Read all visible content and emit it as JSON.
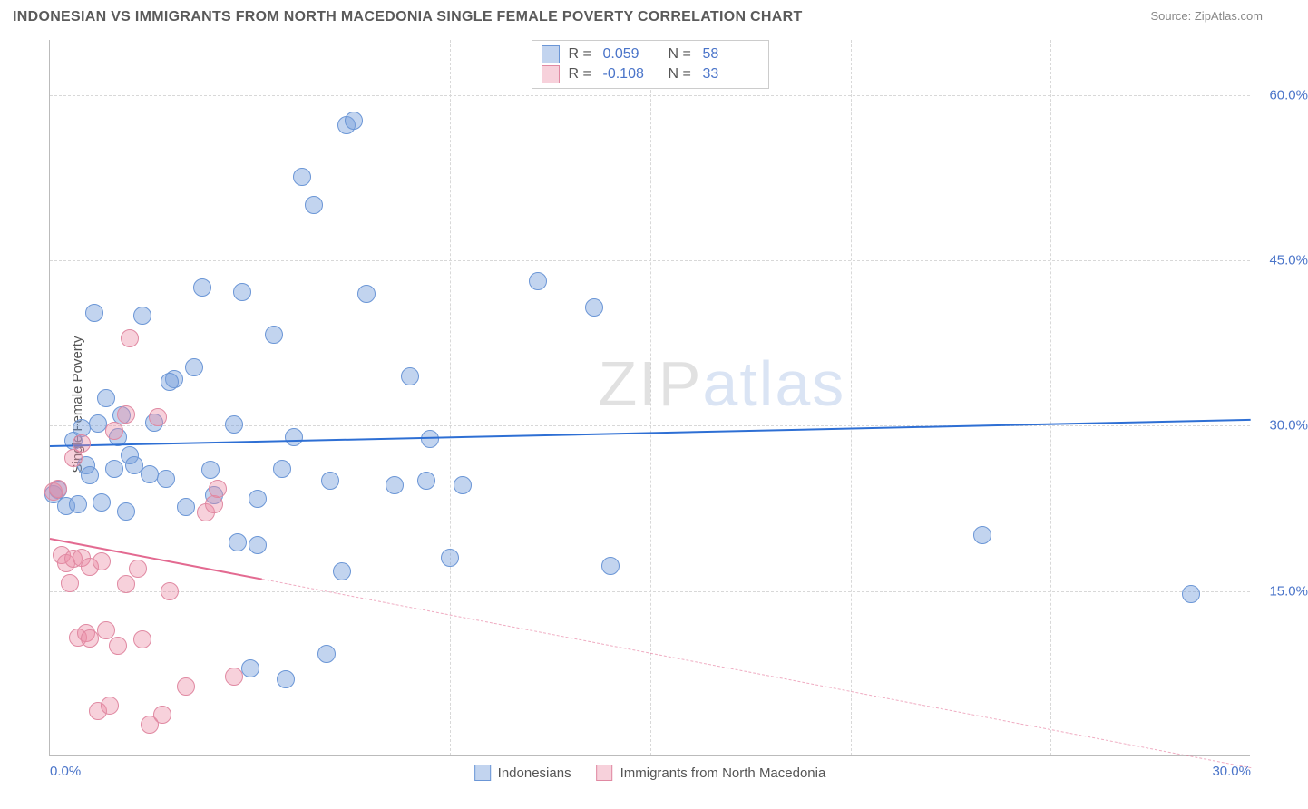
{
  "header": {
    "title": "INDONESIAN VS IMMIGRANTS FROM NORTH MACEDONIA SINGLE FEMALE POVERTY CORRELATION CHART",
    "source": "Source: ZipAtlas.com"
  },
  "watermark": {
    "part1": "ZIP",
    "part2": "atlas"
  },
  "chart": {
    "type": "scatter",
    "ylabel": "Single Female Poverty",
    "background_color": "#ffffff",
    "grid_color": "#d8d8d8",
    "axis_color": "#bbbbbb",
    "tick_font_color": "#4a74c9",
    "tick_fontsize": 15,
    "xlim": [
      0,
      30
    ],
    "ylim": [
      0,
      65
    ],
    "yticks": [
      {
        "v": 15,
        "label": "15.0%"
      },
      {
        "v": 30,
        "label": "30.0%"
      },
      {
        "v": 45,
        "label": "45.0%"
      },
      {
        "v": 60,
        "label": "60.0%"
      }
    ],
    "xticks": [
      {
        "v": 0,
        "label": "0.0%",
        "pos": "first"
      },
      {
        "v": 10,
        "label": "",
        "pos": "mid"
      },
      {
        "v": 15,
        "label": "",
        "pos": "mid"
      },
      {
        "v": 20,
        "label": "",
        "pos": "mid"
      },
      {
        "v": 25,
        "label": "",
        "pos": "mid"
      },
      {
        "v": 30,
        "label": "30.0%",
        "pos": "last"
      }
    ],
    "marker_radius": 10,
    "marker_opacity": 0.55,
    "series": [
      {
        "name": "Indonesians",
        "color_fill": "rgba(120,160,220,0.45)",
        "color_stroke": "#6b96d6",
        "trend_color": "#2e6fd4",
        "trend_width": 2.4,
        "trend_dash": "solid",
        "R": "0.059",
        "N": "58",
        "trend": {
          "x1": 0,
          "y1": 28.2,
          "x2": 30,
          "y2": 30.6
        },
        "points": [
          [
            0.1,
            23.8
          ],
          [
            0.2,
            24.2
          ],
          [
            0.4,
            22.7
          ],
          [
            0.6,
            28.6
          ],
          [
            0.7,
            22.9
          ],
          [
            0.8,
            29.8
          ],
          [
            0.9,
            26.4
          ],
          [
            1.0,
            25.5
          ],
          [
            1.1,
            40.2
          ],
          [
            1.2,
            30.2
          ],
          [
            1.3,
            23.0
          ],
          [
            1.4,
            32.5
          ],
          [
            1.6,
            26.1
          ],
          [
            1.7,
            29.0
          ],
          [
            1.8,
            30.9
          ],
          [
            1.9,
            22.2
          ],
          [
            2.0,
            27.3
          ],
          [
            2.1,
            26.4
          ],
          [
            2.3,
            40.0
          ],
          [
            2.5,
            25.6
          ],
          [
            2.6,
            30.3
          ],
          [
            2.9,
            25.2
          ],
          [
            3.1,
            34.2
          ],
          [
            3.4,
            22.6
          ],
          [
            3.6,
            35.3
          ],
          [
            3.8,
            42.5
          ],
          [
            4.0,
            26.0
          ],
          [
            4.1,
            23.7
          ],
          [
            4.6,
            30.1
          ],
          [
            4.7,
            19.4
          ],
          [
            4.8,
            42.1
          ],
          [
            5.0,
            8.0
          ],
          [
            5.2,
            23.4
          ],
          [
            5.2,
            19.2
          ],
          [
            5.6,
            38.3
          ],
          [
            5.8,
            26.1
          ],
          [
            5.9,
            7.0
          ],
          [
            6.1,
            29.0
          ],
          [
            6.3,
            52.6
          ],
          [
            6.9,
            9.3
          ],
          [
            7.0,
            25.0
          ],
          [
            7.3,
            16.8
          ],
          [
            7.4,
            57.3
          ],
          [
            7.6,
            57.7
          ],
          [
            7.9,
            42.0
          ],
          [
            8.6,
            24.6
          ],
          [
            9.0,
            34.5
          ],
          [
            9.4,
            25.0
          ],
          [
            9.5,
            28.8
          ],
          [
            10.0,
            18.0
          ],
          [
            10.3,
            24.6
          ],
          [
            12.2,
            43.1
          ],
          [
            13.6,
            40.7
          ],
          [
            14.0,
            17.3
          ],
          [
            23.3,
            20.1
          ],
          [
            28.5,
            14.7
          ],
          [
            6.6,
            50.0
          ],
          [
            3.0,
            34.0
          ]
        ]
      },
      {
        "name": "Immigrants from North Macedonia",
        "color_fill": "rgba(235,140,165,0.40)",
        "color_stroke": "#e089a2",
        "trend_color": "#e36a91",
        "trend_width": 2.2,
        "trend_dash": "solid_then_dash",
        "R": "-0.108",
        "N": "33",
        "trend": {
          "x1": 0,
          "y1": 19.8,
          "x2": 30,
          "y2": -1.0
        },
        "points": [
          [
            0.1,
            24.0
          ],
          [
            0.2,
            24.3
          ],
          [
            0.3,
            18.3
          ],
          [
            0.4,
            17.5
          ],
          [
            0.5,
            15.7
          ],
          [
            0.6,
            27.1
          ],
          [
            0.6,
            17.9
          ],
          [
            0.7,
            10.8
          ],
          [
            0.8,
            28.4
          ],
          [
            0.8,
            18.0
          ],
          [
            0.9,
            11.2
          ],
          [
            1.0,
            10.7
          ],
          [
            1.0,
            17.2
          ],
          [
            1.2,
            4.1
          ],
          [
            1.3,
            17.7
          ],
          [
            1.4,
            11.4
          ],
          [
            1.5,
            4.6
          ],
          [
            1.6,
            29.5
          ],
          [
            1.7,
            10.0
          ],
          [
            1.9,
            15.6
          ],
          [
            1.9,
            31.0
          ],
          [
            2.0,
            37.9
          ],
          [
            2.2,
            17.0
          ],
          [
            2.3,
            10.6
          ],
          [
            2.5,
            2.9
          ],
          [
            2.7,
            30.8
          ],
          [
            2.8,
            3.8
          ],
          [
            3.0,
            15.0
          ],
          [
            3.4,
            6.3
          ],
          [
            3.9,
            22.1
          ],
          [
            4.1,
            22.9
          ],
          [
            4.2,
            24.3
          ],
          [
            4.6,
            7.2
          ]
        ]
      }
    ],
    "legend_top": {
      "rows": [
        {
          "swatch_fill": "rgba(120,160,220,0.45)",
          "swatch_stroke": "#6b96d6",
          "R_label": "R =",
          "R": "0.059",
          "N_label": "N =",
          "N": "58",
          "val_color": "#4a74c9"
        },
        {
          "swatch_fill": "rgba(235,140,165,0.40)",
          "swatch_stroke": "#e089a2",
          "R_label": "R =",
          "R": "-0.108",
          "N_label": "N =",
          "N": "33",
          "val_color": "#4a74c9"
        }
      ]
    },
    "legend_bottom": [
      {
        "swatch_fill": "rgba(120,160,220,0.45)",
        "swatch_stroke": "#6b96d6",
        "label": "Indonesians"
      },
      {
        "swatch_fill": "rgba(235,140,165,0.40)",
        "swatch_stroke": "#e089a2",
        "label": "Immigrants from North Macedonia"
      }
    ]
  }
}
